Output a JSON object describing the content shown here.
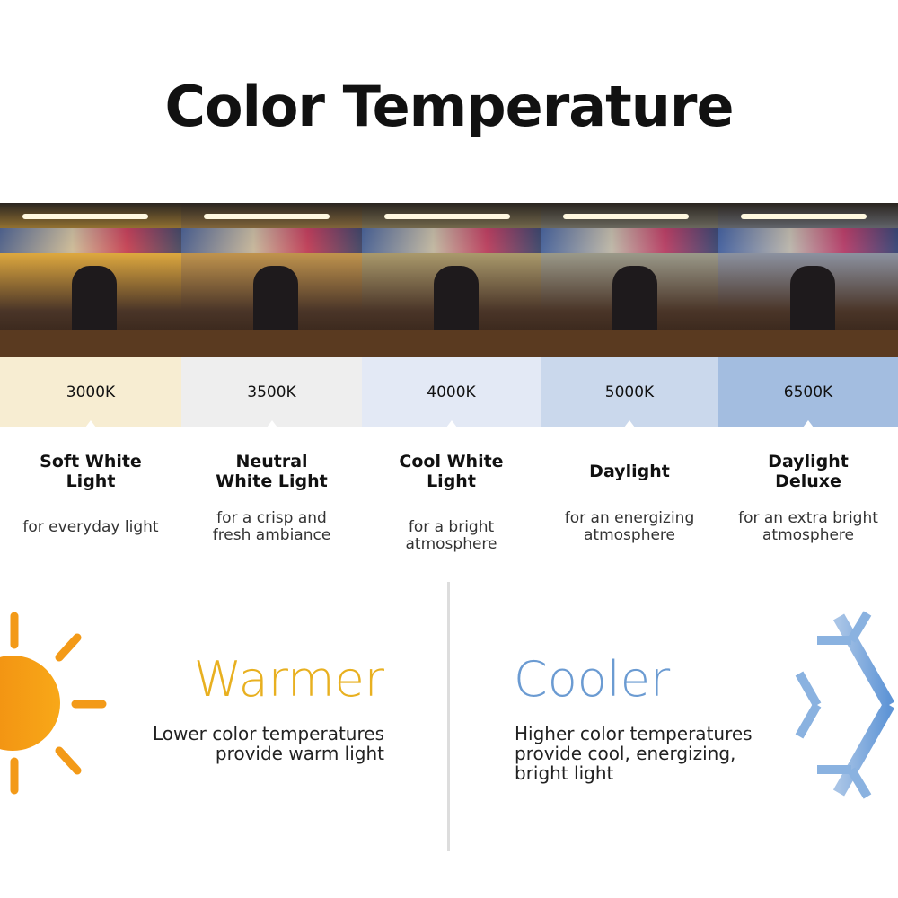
{
  "title": "Color Temperature",
  "columns": [
    {
      "kelvin": "3000K",
      "name": "Soft White Light",
      "desc": "for everyday light",
      "swatch": "#f7edd2",
      "tint": "#e8b040"
    },
    {
      "kelvin": "3500K",
      "name": "Neutral White Light",
      "desc": "for a crisp and fresh ambiance",
      "swatch": "#eeeeee",
      "tint": "#c89a50"
    },
    {
      "kelvin": "4000K",
      "name": "Cool White Light",
      "desc": "for a bright atmosphere",
      "swatch": "#e3e9f5",
      "tint": "#b0a070"
    },
    {
      "kelvin": "5000K",
      "name": "Daylight",
      "desc": "for an energizing atmosphere",
      "swatch": "#cad8ec",
      "tint": "#a0a090"
    },
    {
      "kelvin": "6500K",
      "name": "Daylight Deluxe",
      "desc": "for an extra bright atmosphere",
      "swatch": "#a3bde0",
      "tint": "#9098a8"
    }
  ],
  "warmer": {
    "heading": "Warmer",
    "text": "Lower color temperatures provide warm light",
    "color": "#e8b020",
    "icon": "sun-icon"
  },
  "cooler": {
    "heading": "Cooler",
    "text": "Higher color temperatures provide cool, energizing, bright light",
    "color": "#6b9bd2",
    "icon": "snowflake-icon"
  }
}
